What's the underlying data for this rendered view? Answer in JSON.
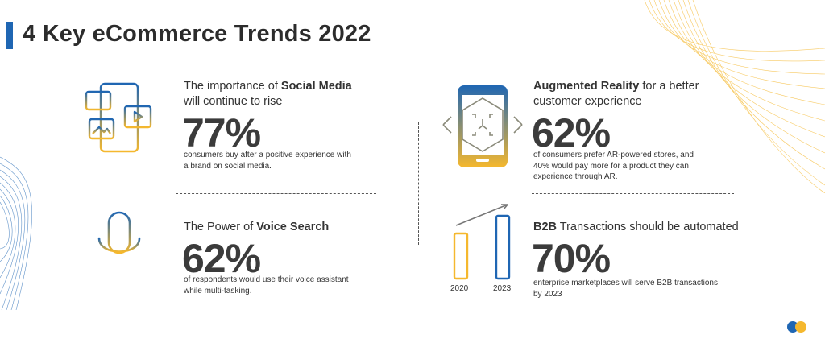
{
  "title": "4 Key eCommerce Trends 2022",
  "colors": {
    "accent_blue": "#1f66b3",
    "accent_yellow": "#f5b82e",
    "text_dark": "#333333"
  },
  "trends": [
    {
      "icon": "social-media-devices-icon",
      "heading_pre": "The importance of ",
      "heading_bold": "Social Media",
      "heading_post": "will continue to rise",
      "stat": "77%",
      "description_line1": "consumers buy after a positive experience with",
      "description_line2": "a brand on social media."
    },
    {
      "icon": "voice-microphone-icon",
      "heading_pre": "The Power of ",
      "heading_bold": "Voice Search",
      "stat": "62%",
      "description_line1": "of respondents would use their voice assistant",
      "description_line2": "while multi-tasking."
    },
    {
      "icon": "augmented-reality-phone-icon",
      "heading_bold": "Augmented Reality",
      "heading_post_inline": " for a better",
      "heading_line2": "customer experience",
      "stat": "62%",
      "description_line1": "of consumers prefer AR-powered stores, and",
      "description_line2": "40% would pay more for a product they can",
      "description_line3": "experience through AR."
    },
    {
      "icon": "growth-bars-icon",
      "heading_bold": "B2B",
      "heading_post_inline": " Transactions should be automated",
      "stat": "70%",
      "description_line1": "enterprise marketplaces will serve B2B transactions",
      "description_line2": "by 2023",
      "bar_labels": [
        "2020",
        "2023"
      ]
    }
  ]
}
